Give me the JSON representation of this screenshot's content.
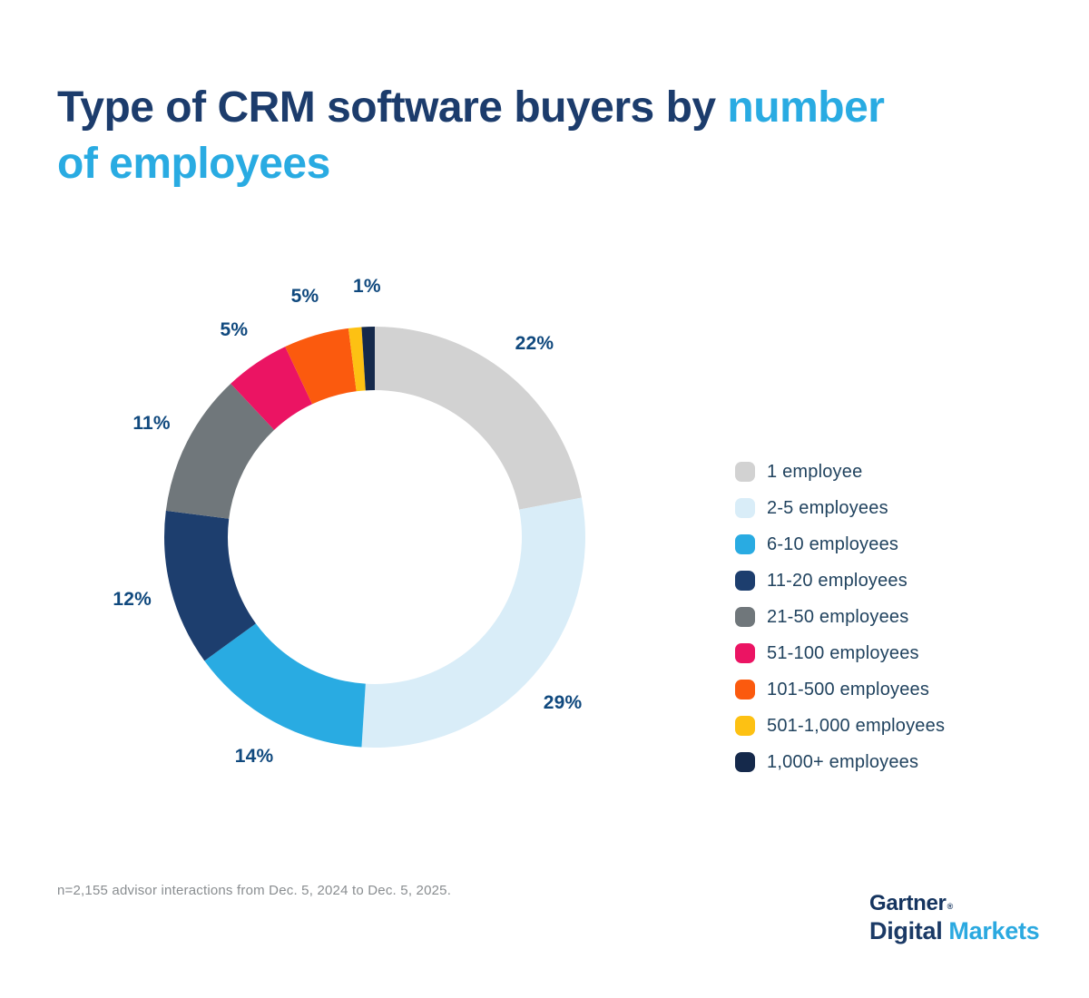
{
  "title": {
    "text_dark": "Type of CRM software buyers by ",
    "accent_line1": "number",
    "accent_line2": "of employees"
  },
  "chart_data": {
    "type": "pie",
    "subtype": "donut",
    "title": "Type of CRM software buyers by number of employees",
    "unit": "%",
    "direction": "clockwise",
    "start_angle_deg": 0,
    "legend_position": "right",
    "label_color": "#10497E",
    "slices": [
      {
        "label": "1 employee",
        "value": 22,
        "color": "#D2D2D2",
        "show_label": true
      },
      {
        "label": "2-5 employees",
        "value": 29,
        "color": "#D9EDF8",
        "show_label": true
      },
      {
        "label": "6-10 employees",
        "value": 14,
        "color": "#29ABE2",
        "show_label": true
      },
      {
        "label": "11-20 employees",
        "value": 12,
        "color": "#1D3E6E",
        "show_label": true
      },
      {
        "label": "21-50 employees",
        "value": 11,
        "color": "#70777B",
        "show_label": true
      },
      {
        "label": "51-100 employees",
        "value": 5,
        "color": "#EB1463",
        "show_label": true
      },
      {
        "label": "101-500 employees",
        "value": 5,
        "color": "#FB5A0E",
        "show_label": true
      },
      {
        "label": "501-1,000 employees",
        "value": 1,
        "color": "#FDC113",
        "show_label": false
      },
      {
        "label": "1,000+ employees",
        "value": 1,
        "color": "#15294B",
        "show_label": true
      }
    ]
  },
  "footnote": "n=2,155 advisor interactions from Dec. 5, 2024 to Dec. 5, 2025.",
  "logo": {
    "brand": "Gartner",
    "registered": "®",
    "sub_dark": "Digital",
    "sub_accent": "Markets"
  }
}
